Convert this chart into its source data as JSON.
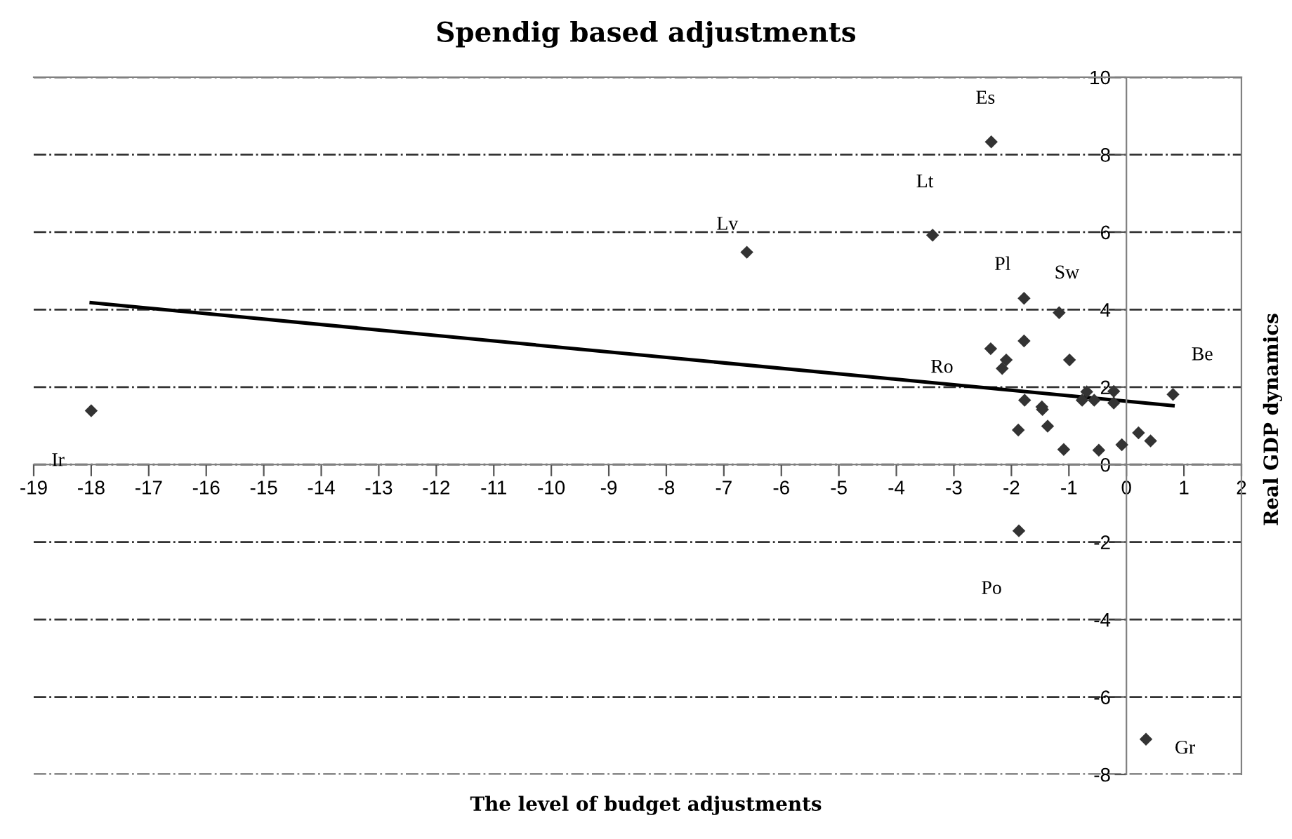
{
  "chart_data": {
    "type": "scatter",
    "title": "Spendig based adjustments",
    "xlabel": "The level of budget adjustments",
    "ylabel": "Real GDP dynamics",
    "xlim": [
      -19,
      2
    ],
    "xticks": [
      -19,
      -18,
      -17,
      -16,
      -15,
      -14,
      -13,
      -12,
      -11,
      -10,
      -9,
      -8,
      -7,
      -6,
      -5,
      -4,
      -3,
      -2,
      -1,
      0,
      1,
      2
    ],
    "ylim": [
      -8,
      10
    ],
    "yticks": [
      -8,
      -6,
      -4,
      -2,
      0,
      2,
      4,
      6,
      8,
      10
    ],
    "grid": "y",
    "marker": "diamond",
    "series": [
      {
        "color": "#333333",
        "x": [
          -2.35,
          -3.37,
          -6.6,
          -1.78,
          -1.17,
          -2.36,
          -1.78,
          -2.09,
          -2.16,
          -0.99,
          -1.77,
          -1.47,
          -1.46,
          -1.88,
          -1.37,
          -1.09,
          -0.69,
          -0.77,
          -0.56,
          -0.22,
          -0.22,
          -0.48,
          -0.08,
          0.21,
          0.42,
          0.81,
          -18.0,
          -1.87,
          0.34
        ],
        "values": [
          8.33,
          5.92,
          5.48,
          4.29,
          3.92,
          2.99,
          3.19,
          2.7,
          2.48,
          2.7,
          1.66,
          1.49,
          1.42,
          0.89,
          0.99,
          0.39,
          1.88,
          1.66,
          1.66,
          1.89,
          1.59,
          0.37,
          0.51,
          0.82,
          0.61,
          1.81,
          1.39,
          -1.71,
          -7.09
        ]
      },
      {
        "type": "line",
        "color": "#000000",
        "marker": "none",
        "line_style": "solid",
        "x": [
          -18.0,
          0.81
        ],
        "values": [
          4.18,
          1.52
        ]
      }
    ],
    "annotations": [
      {
        "text": "Es",
        "x": -2.35,
        "y": 8.33
      },
      {
        "text": "Lt",
        "x": -3.37,
        "y": 5.92
      },
      {
        "text": "Lv",
        "x": -6.6,
        "y": 5.48
      },
      {
        "text": "Pl",
        "x": -1.78,
        "y": 4.29
      },
      {
        "text": "Sw",
        "x": -1.17,
        "y": 3.92
      },
      "Ro",
      {
        "text": "Be",
        "x": 0.81,
        "y": 1.81
      },
      {
        "text": "Ir",
        "x": -18.0,
        "y": 1.39
      },
      {
        "text": "Po",
        "x": -1.87,
        "y": -1.71
      },
      {
        "text": "Gr",
        "x": 0.34,
        "y": -7.09
      }
    ]
  }
}
